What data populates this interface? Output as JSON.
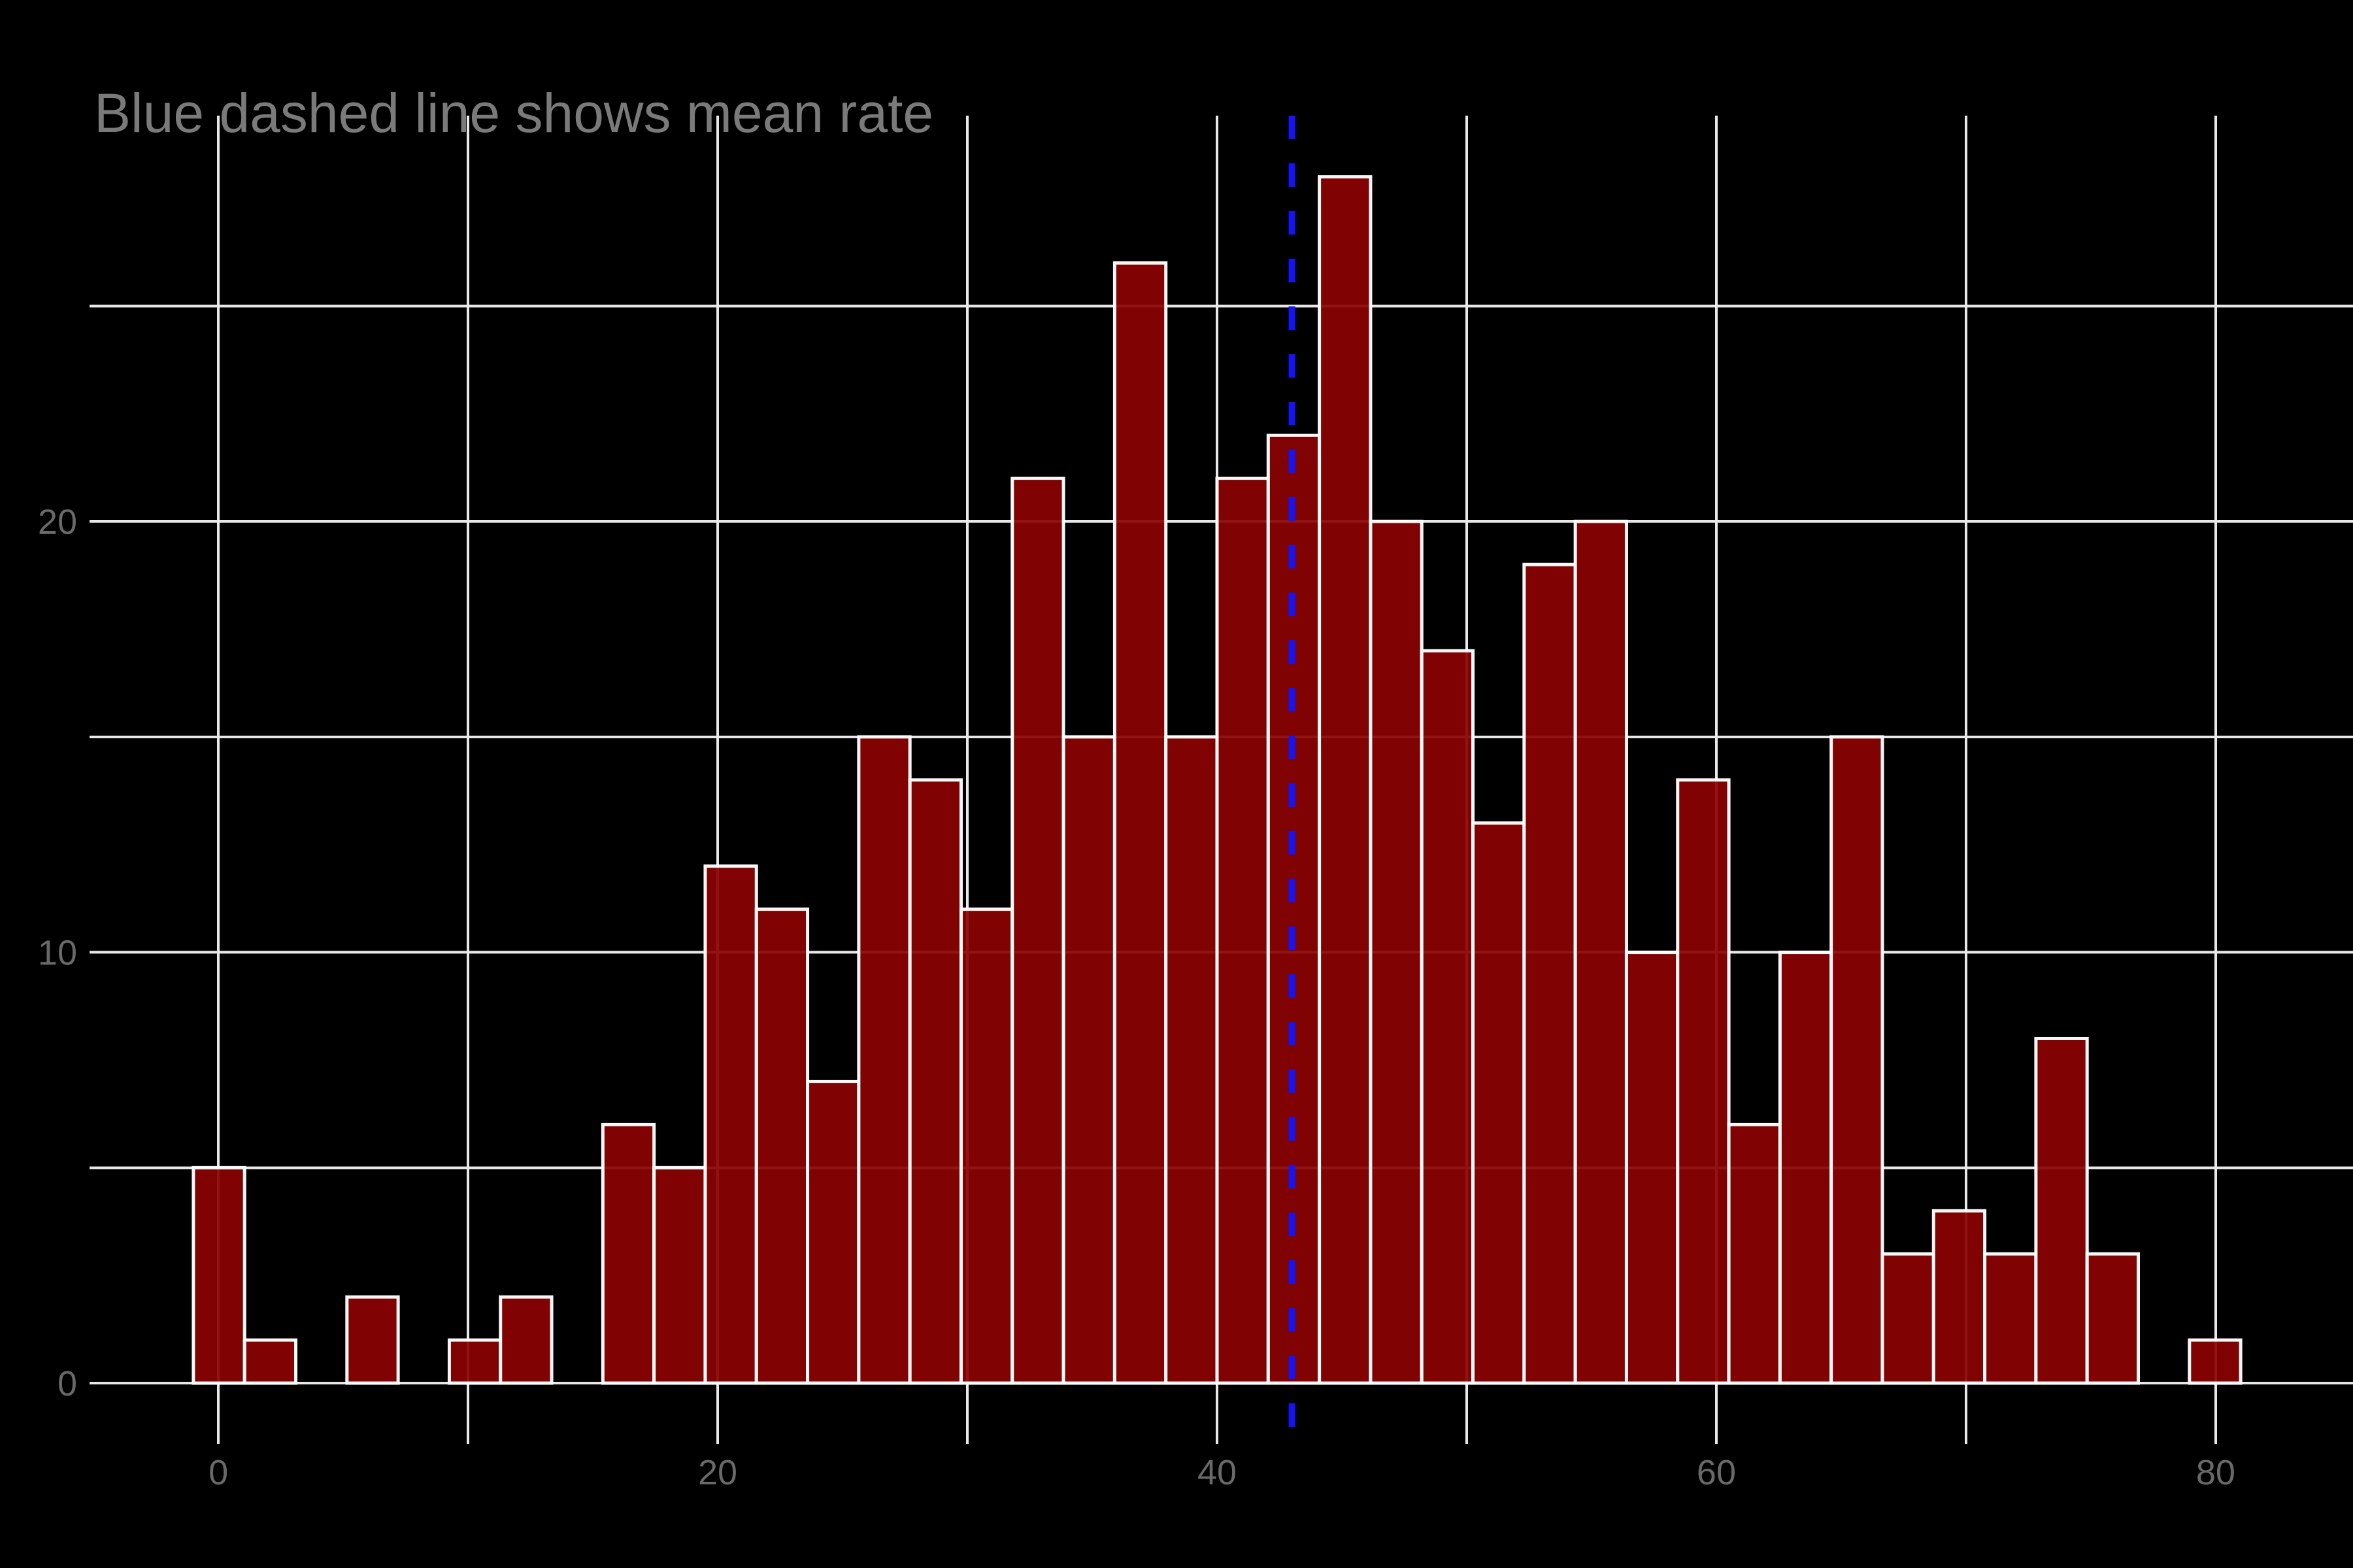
{
  "title": "Blue dashed line shows mean rate",
  "colors": {
    "background": "#000000",
    "bar_fill": "#8b0202",
    "bar_edge": "#ffffff",
    "gridline": "#e8e8e8",
    "mean_line": "#1414f5",
    "title_text": "#7a7a7a",
    "tick_text": "#696969"
  },
  "chart_data": {
    "type": "bar",
    "subtype": "histogram",
    "title": "Blue dashed line shows mean rate",
    "xlabel": "",
    "ylabel": "",
    "grid": true,
    "legend": "none",
    "bin_start": -1,
    "bin_width": 2.05,
    "counts": [
      5,
      1,
      0,
      2,
      0,
      1,
      2,
      0,
      6,
      5,
      12,
      11,
      7,
      15,
      14,
      11,
      21,
      15,
      26,
      15,
      21,
      22,
      28,
      20,
      17,
      13,
      19,
      20,
      10,
      14,
      6,
      10,
      15,
      3,
      4,
      3,
      8,
      3,
      0,
      1
    ],
    "mean_rate": 43.0,
    "mean_line_style": "dashed",
    "xlim": [
      -5.16,
      85.5
    ],
    "ylim": [
      -1.41,
      29.42
    ],
    "x_tick_values": [
      0,
      20,
      40,
      60,
      80
    ],
    "x_tick_labels": [
      "0",
      "20",
      "40",
      "60",
      "80"
    ],
    "x_grid_values": [
      0,
      10,
      20,
      30,
      40,
      50,
      60,
      70,
      80
    ],
    "y_tick_values": [
      0,
      10,
      20
    ],
    "y_tick_labels": [
      "0",
      "10",
      "20"
    ],
    "y_grid_values": [
      0,
      5,
      10,
      15,
      20,
      25
    ]
  }
}
